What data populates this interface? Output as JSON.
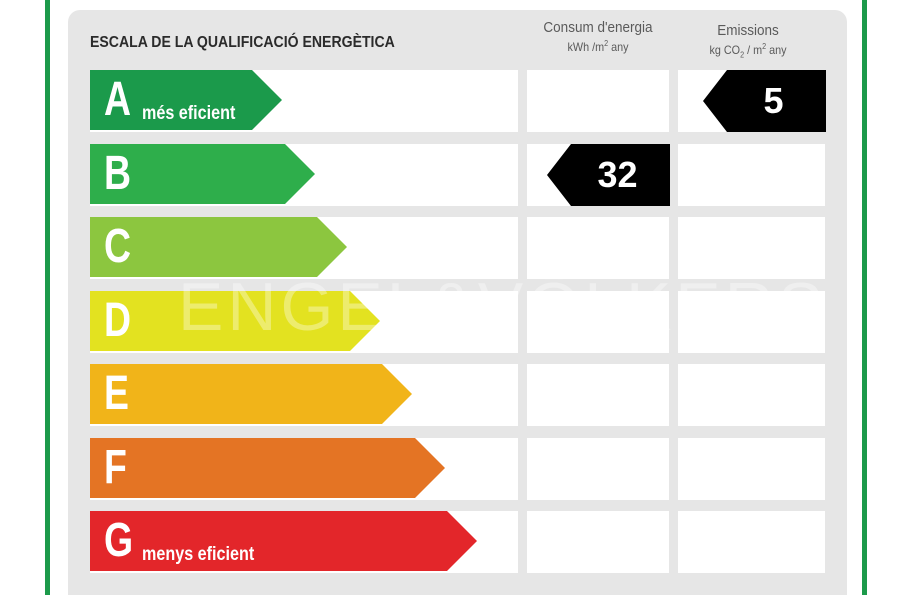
{
  "label": {
    "title": "ESCALA DE LA QUALIFICACIÓ ENERGÈTICA",
    "columns": {
      "consumption": {
        "title": "Consum d'energia",
        "unit_main": "kWh /m",
        "unit_sup": "2",
        "unit_tail": " any"
      },
      "emissions": {
        "title": "Emissions",
        "unit_main": "kg CO",
        "unit_sub": "2",
        "unit_mid": " / m",
        "unit_sup": "2",
        "unit_tail": " any"
      }
    },
    "classes": [
      {
        "letter": "A",
        "text": "més eficient",
        "color": "#1b9a4b"
      },
      {
        "letter": "B",
        "text": "",
        "color": "#2eae4b"
      },
      {
        "letter": "C",
        "text": "",
        "color": "#8cc63f"
      },
      {
        "letter": "D",
        "text": "",
        "color": "#e3e220"
      },
      {
        "letter": "E",
        "text": "",
        "color": "#f1b419"
      },
      {
        "letter": "F",
        "text": "",
        "color": "#e47424"
      },
      {
        "letter": "G",
        "text": "menys eficient",
        "color": "#e3262a"
      }
    ],
    "consumption_rating": {
      "class": "B",
      "value": "32"
    },
    "emissions_rating": {
      "class": "A",
      "value": "5"
    },
    "watermark": "ENGEL&VÖLKERS"
  }
}
